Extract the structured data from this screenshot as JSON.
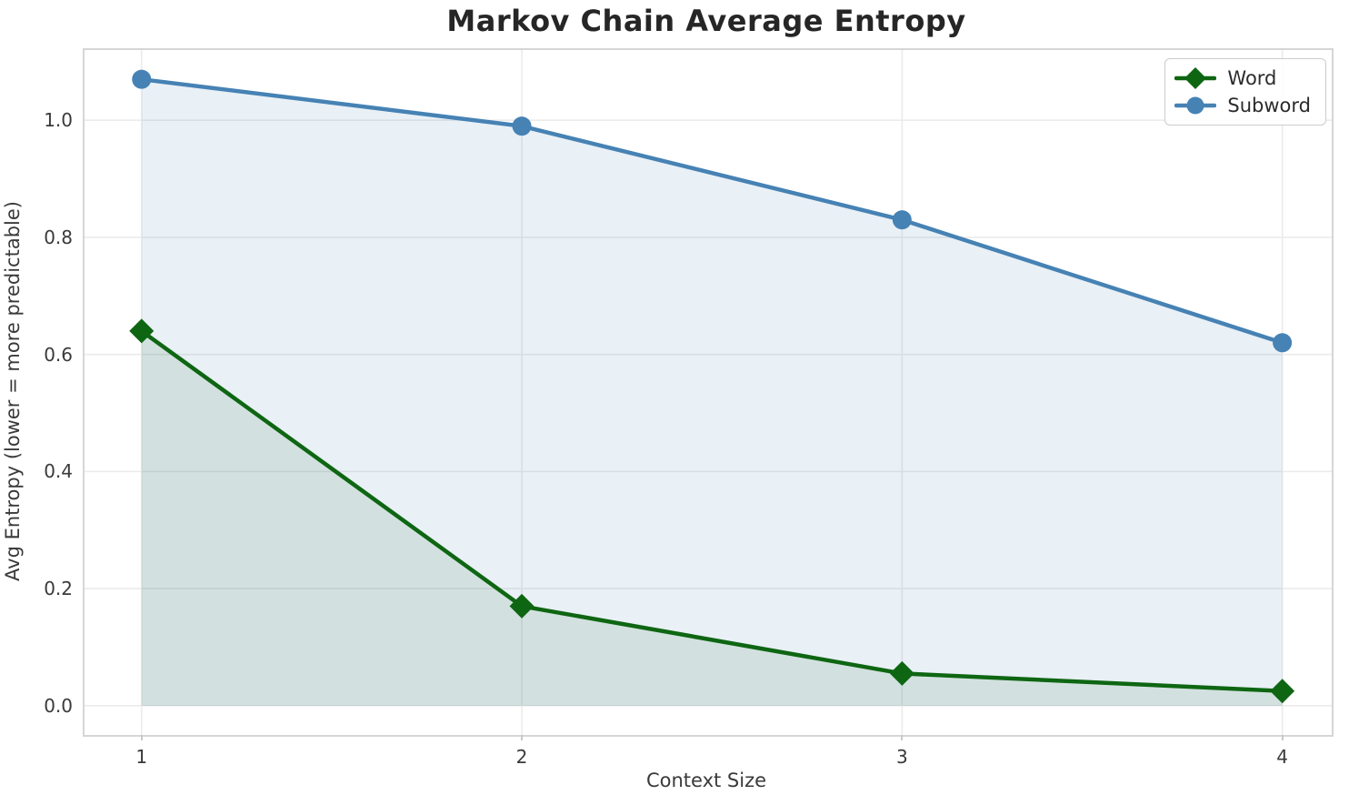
{
  "chart_data": {
    "type": "line",
    "title": "Markov Chain Average Entropy",
    "xlabel": "Context Size",
    "ylabel": "Avg Entropy (lower = more predictable)",
    "x": [
      1,
      2,
      3,
      4
    ],
    "series": [
      {
        "name": "Subword",
        "marker": "circle",
        "color": "#4682b4",
        "fill_alpha": 0.12,
        "values": [
          1.07,
          0.99,
          0.83,
          0.62
        ]
      },
      {
        "name": "Word",
        "marker": "diamond",
        "color": "#0e6612",
        "fill_alpha": 0.1,
        "values": [
          0.64,
          0.17,
          0.055,
          0.025
        ]
      }
    ],
    "xticks": [
      "1",
      "2",
      "3",
      "4"
    ],
    "xtick_values": [
      1,
      2,
      3,
      4
    ],
    "yticks": [
      "0.0",
      "0.2",
      "0.4",
      "0.6",
      "0.8",
      "1.0"
    ],
    "ytick_values": [
      0.0,
      0.2,
      0.4,
      0.6,
      0.8,
      1.0
    ],
    "xlim": [
      0.85,
      4.13
    ],
    "ylim": [
      -0.05,
      1.12
    ],
    "grid": true,
    "grid_color": "#ebebeb",
    "spine_color": "#d6d6d6",
    "text_color": "#3a3a3a",
    "title_color": "#262626",
    "background_color": "#ffffff",
    "legend_position": "upper right",
    "legend_order": [
      "Word",
      "Subword"
    ]
  }
}
